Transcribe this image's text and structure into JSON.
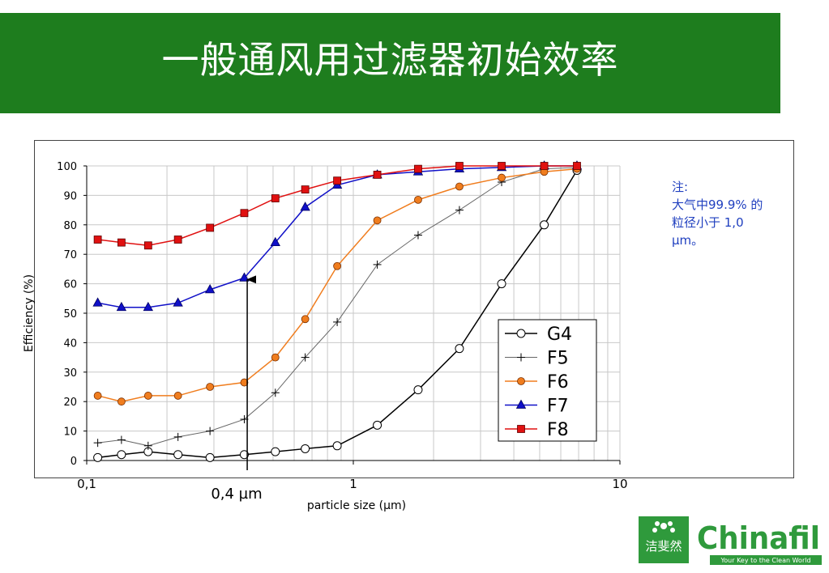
{
  "slide": {
    "title": "一般通风用过滤器初始效率"
  },
  "note": {
    "line1": "注:",
    "line2": "大气中99.9% 的",
    "line3": "粒径小于 1,0",
    "line4": "µm。"
  },
  "arrow_label": "0,4 µm",
  "logo": {
    "cn_text": "洁斐然",
    "brand": "Chinafil",
    "tagline": "Your Key to the Clean World"
  },
  "colors": {
    "banner": "#1e7d1e",
    "F6": "#f07d1e",
    "F7": "#1010c8",
    "F8": "#e01010",
    "note": "#1f3fbf",
    "logo": "#2f9a3c"
  },
  "chart_data": {
    "type": "line",
    "xlabel": "particle size (µm)",
    "ylabel": "Efficiency (%)",
    "x_scale": "log",
    "xlim": [
      0.1,
      10
    ],
    "ylim": [
      0,
      100
    ],
    "grid": true,
    "legend_position": "lower-right",
    "x_ticks": [
      "0,1",
      "1",
      "10"
    ],
    "y_ticks": [
      "0",
      "10",
      "20",
      "30",
      "40",
      "50",
      "60",
      "70",
      "80",
      "90",
      "100"
    ],
    "x": [
      0.11,
      0.135,
      0.17,
      0.22,
      0.29,
      0.39,
      0.51,
      0.66,
      0.87,
      1.23,
      1.75,
      2.5,
      3.6,
      5.2,
      6.9
    ],
    "series": [
      {
        "name": "G4",
        "marker": "open-circle",
        "values": [
          1,
          2,
          3,
          2,
          1,
          2,
          3,
          4,
          5,
          12,
          24,
          38,
          60,
          80,
          98.5
        ]
      },
      {
        "name": "F5",
        "marker": "plus",
        "values": [
          6,
          7,
          5,
          8,
          10,
          14,
          23,
          35,
          47,
          66.5,
          76.5,
          85,
          94.5,
          99,
          99.5
        ]
      },
      {
        "name": "F6",
        "marker": "filled-circle",
        "values": [
          22,
          20,
          22,
          22,
          25,
          26.5,
          35,
          48,
          66,
          81.5,
          88.5,
          93,
          96,
          98,
          99
        ]
      },
      {
        "name": "F7",
        "marker": "filled-triangle",
        "values": [
          53.5,
          52,
          52,
          53.5,
          58,
          62,
          74,
          86,
          93.5,
          97,
          98,
          99,
          99.5,
          100,
          100
        ]
      },
      {
        "name": "F8",
        "marker": "filled-square",
        "values": [
          75,
          74,
          73,
          75,
          79,
          84,
          89,
          92,
          95,
          97,
          99,
          100,
          100,
          100,
          100
        ]
      }
    ],
    "annotation_arrow_x": 0.4,
    "annotation_arrow_top": 62
  }
}
